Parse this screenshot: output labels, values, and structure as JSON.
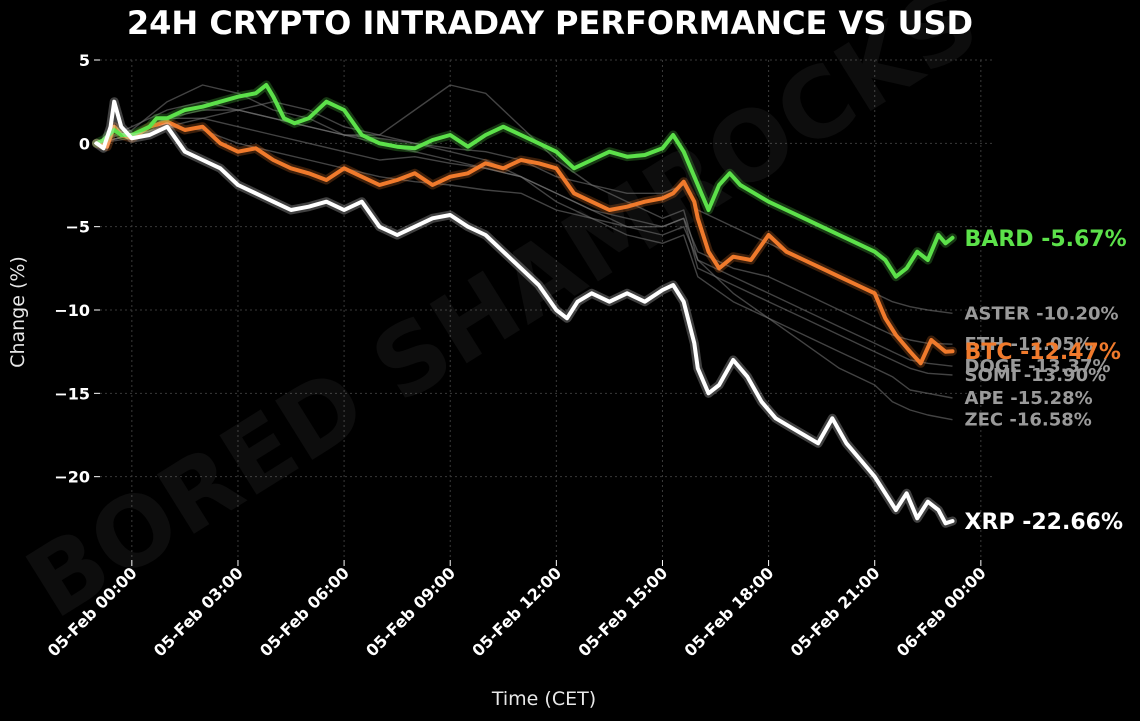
{
  "chart_data": {
    "type": "line",
    "title": "24H CRYPTO INTRADAY PERFORMANCE VS USD",
    "xlabel": "Time (CET)",
    "ylabel": "Change (%)",
    "ylim": [
      -25,
      5
    ],
    "xlim_hours": [
      -0.9,
      24.4
    ],
    "yticks": [
      5,
      0,
      -5,
      -10,
      -15,
      -20
    ],
    "yticklabels": [
      "5",
      "0",
      "−5",
      "−10",
      "−15",
      "−20"
    ],
    "xticks_hours": [
      0,
      3,
      6,
      9,
      12,
      15,
      18,
      21,
      24
    ],
    "xticklabels": [
      "05-Feb 00:00",
      "05-Feb 03:00",
      "05-Feb 06:00",
      "05-Feb 09:00",
      "05-Feb 12:00",
      "05-Feb 15:00",
      "05-Feb 18:00",
      "05-Feb 21:00",
      "06-Feb 00:00"
    ],
    "grid": true,
    "watermark": "BORED SHAMROCKS",
    "series": [
      {
        "name": "ASTER",
        "label": "ASTER -10.20%",
        "final": -10.2,
        "color": "#9a9a9a",
        "background": true,
        "x": [
          -1,
          0,
          1,
          2,
          3,
          4,
          5,
          6,
          7,
          8,
          9,
          10,
          11,
          12,
          13,
          14,
          15,
          15.6,
          16,
          17,
          18,
          19,
          20,
          21,
          21.5,
          22,
          22.5,
          23.2
        ],
        "y": [
          0,
          0.5,
          1.5,
          2.0,
          2.0,
          1.5,
          1.0,
          0.5,
          0.3,
          0,
          -0.3,
          -0.5,
          -1.0,
          -2.0,
          -2.5,
          -3.0,
          -3.0,
          -2.5,
          -4.0,
          -5.0,
          -6.0,
          -7.0,
          -8.0,
          -9.0,
          -9.5,
          -9.8,
          -10.0,
          -10.2
        ]
      },
      {
        "name": "ETH",
        "label": "ETH -12.05%",
        "final": -12.05,
        "color": "#9a9a9a",
        "background": true,
        "x": [
          -1,
          0,
          1,
          2,
          3,
          4,
          5,
          6,
          7,
          8,
          9,
          10,
          11,
          12,
          13,
          14,
          15,
          15.6,
          16,
          17,
          18,
          19,
          20,
          21,
          21.5,
          22,
          22.5,
          23.2
        ],
        "y": [
          0,
          0.3,
          1.0,
          0.8,
          0,
          -0.5,
          -1.0,
          -1.5,
          -2.0,
          -2.3,
          -2.5,
          -2.8,
          -3.0,
          -4.0,
          -4.5,
          -5.0,
          -5.0,
          -4.5,
          -6.5,
          -7.5,
          -8.0,
          -9.0,
          -10.0,
          -11.0,
          -11.5,
          -11.8,
          -12.0,
          -12.05
        ]
      },
      {
        "name": "BTC",
        "label": "BTC -12.47%",
        "final": -12.47,
        "color": "#f07a2c",
        "background": false,
        "x": [
          -1,
          -0.7,
          -0.5,
          -0.3,
          0,
          0.5,
          1,
          1.5,
          2,
          2.5,
          3,
          3.5,
          4,
          4.5,
          5,
          5.5,
          6,
          6.5,
          7,
          7.5,
          8,
          8.5,
          9,
          9.5,
          10,
          10.5,
          11,
          11.5,
          12,
          12.5,
          13,
          13.5,
          14,
          14.5,
          15,
          15.3,
          15.6,
          15.9,
          16,
          16.3,
          16.6,
          17,
          17.5,
          18,
          18.5,
          19,
          19.5,
          20,
          20.5,
          21,
          21.3,
          21.6,
          22,
          22.3,
          22.6,
          23,
          23.2
        ],
        "y": [
          0,
          -0.2,
          1.0,
          0.5,
          0.3,
          1.0,
          1.3,
          0.8,
          1.0,
          0,
          -0.5,
          -0.3,
          -1.0,
          -1.5,
          -1.8,
          -2.2,
          -1.5,
          -2.0,
          -2.5,
          -2.2,
          -1.8,
          -2.5,
          -2.0,
          -1.8,
          -1.2,
          -1.5,
          -1.0,
          -1.2,
          -1.5,
          -3.0,
          -3.5,
          -4.0,
          -3.8,
          -3.5,
          -3.3,
          -3.0,
          -2.3,
          -3.5,
          -4.5,
          -6.5,
          -7.5,
          -6.8,
          -7.0,
          -5.5,
          -6.5,
          -7.0,
          -7.5,
          -8.0,
          -8.5,
          -9.0,
          -10.5,
          -11.5,
          -12.5,
          -13.2,
          -11.8,
          -12.5,
          -12.47
        ]
      },
      {
        "name": "DOGE",
        "label": "DOGE -13.37%",
        "final": -13.37,
        "color": "#9a9a9a",
        "background": true,
        "x": [
          -1,
          0,
          1,
          2,
          3,
          4,
          5,
          6,
          7,
          8,
          9,
          10,
          11,
          12,
          13,
          14,
          15,
          15.6,
          16,
          17,
          18,
          19,
          20,
          21,
          21.5,
          22,
          22.5,
          23.2
        ],
        "y": [
          0,
          0.5,
          1.5,
          1.5,
          1.0,
          0.5,
          0,
          -0.5,
          -1.0,
          -0.8,
          -1.2,
          -1.5,
          -2.0,
          -3.0,
          -4.0,
          -5.0,
          -5.5,
          -5.0,
          -7.0,
          -8.0,
          -9.0,
          -10.0,
          -11.0,
          -12.0,
          -12.5,
          -13.0,
          -13.2,
          -13.37
        ]
      },
      {
        "name": "SOMI",
        "label": "SOMI -13.90%",
        "final": -13.9,
        "color": "#9a9a9a",
        "background": true,
        "x": [
          -1,
          0,
          1,
          2,
          3,
          4,
          5,
          6,
          7,
          8,
          9,
          10,
          11,
          12,
          13,
          14,
          15,
          15.6,
          16,
          17,
          18,
          19,
          20,
          21,
          21.5,
          22,
          22.5,
          23.2
        ],
        "y": [
          0,
          0.8,
          2.5,
          3.5,
          3.0,
          2.0,
          1.5,
          0.5,
          0,
          -0.5,
          -1.0,
          -1.5,
          -2.0,
          -3.0,
          -4.0,
          -4.5,
          -5.0,
          -4.5,
          -7.5,
          -8.5,
          -9.5,
          -10.5,
          -11.5,
          -12.5,
          -13.0,
          -13.5,
          -13.8,
          -13.9
        ]
      },
      {
        "name": "APE",
        "label": "APE -15.28%",
        "final": -15.28,
        "color": "#9a9a9a",
        "background": true,
        "x": [
          -1,
          0,
          1,
          2,
          3,
          4,
          5,
          6,
          7,
          8,
          9,
          10,
          11,
          12,
          13,
          14,
          15,
          15.6,
          16,
          17,
          18,
          19,
          20,
          21,
          21.5,
          22,
          22.5,
          23.2
        ],
        "y": [
          0,
          1.0,
          2.0,
          2.5,
          2.0,
          1.5,
          1.0,
          0.5,
          0.5,
          0,
          -0.5,
          -1.0,
          -2.0,
          -3.5,
          -4.5,
          -5.5,
          -6.0,
          -5.5,
          -8.0,
          -9.5,
          -10.5,
          -11.5,
          -12.5,
          -13.5,
          -14.0,
          -14.8,
          -15.0,
          -15.28
        ]
      },
      {
        "name": "ZEC",
        "label": "ZEC -16.58%",
        "final": -16.58,
        "color": "#9a9a9a",
        "background": true,
        "x": [
          -1,
          0,
          1,
          2,
          3,
          4,
          5,
          6,
          7,
          8,
          9,
          10,
          11,
          12,
          13,
          14,
          15,
          15.6,
          16,
          17,
          18,
          19,
          20,
          21,
          21.5,
          22,
          22.5,
          23.2
        ],
        "y": [
          0,
          0.5,
          1.0,
          1.5,
          2.0,
          2.5,
          2.0,
          1.0,
          0.5,
          2.0,
          3.5,
          3.0,
          1.0,
          -1.0,
          -2.5,
          -3.5,
          -4.5,
          -4.0,
          -7.0,
          -9.0,
          -10.5,
          -12.0,
          -13.5,
          -14.5,
          -15.5,
          -16.0,
          -16.3,
          -16.58
        ]
      },
      {
        "name": "BARD",
        "label": "BARD -5.67%",
        "final": -5.67,
        "color": "#5ce14a",
        "background": false,
        "x": [
          -1,
          -0.8,
          -0.5,
          -0.3,
          0,
          0.5,
          0.7,
          1,
          1.5,
          2,
          2.5,
          3,
          3.5,
          3.8,
          4,
          4.3,
          4.6,
          5,
          5.5,
          6,
          6.5,
          7,
          7.5,
          8,
          8.5,
          9,
          9.5,
          10,
          10.5,
          11,
          11.5,
          12,
          12.5,
          13,
          13.5,
          14,
          14.5,
          15,
          15.3,
          15.6,
          15.9,
          16,
          16.3,
          16.6,
          16.9,
          17.2,
          17.6,
          18,
          18.5,
          19,
          19.5,
          20,
          20.5,
          21,
          21.3,
          21.6,
          21.9,
          22.2,
          22.5,
          22.8,
          23,
          23.2
        ],
        "y": [
          0,
          0.2,
          0.8,
          0.5,
          0.5,
          1.0,
          1.5,
          1.5,
          2.0,
          2.2,
          2.5,
          2.8,
          3.0,
          3.5,
          2.8,
          1.5,
          1.2,
          1.5,
          2.5,
          2.0,
          0.5,
          0,
          -0.2,
          -0.3,
          0.2,
          0.5,
          -0.2,
          0.5,
          1.0,
          0.5,
          0,
          -0.5,
          -1.5,
          -1.0,
          -0.5,
          -0.8,
          -0.7,
          -0.3,
          0.5,
          -0.5,
          -2.0,
          -2.5,
          -4.0,
          -2.5,
          -1.8,
          -2.5,
          -3.0,
          -3.5,
          -4.0,
          -4.5,
          -5.0,
          -5.5,
          -6.0,
          -6.5,
          -7.0,
          -8.0,
          -7.5,
          -6.5,
          -7.0,
          -5.5,
          -6.0,
          -5.67
        ]
      },
      {
        "name": "XRP",
        "label": "XRP -22.66%",
        "final": -22.66,
        "color": "#ffffff",
        "background": false,
        "x": [
          -1,
          -0.8,
          -0.6,
          -0.5,
          -0.3,
          0,
          0.5,
          1,
          1.5,
          2,
          2.5,
          3,
          3.5,
          4,
          4.5,
          5,
          5.5,
          6,
          6.5,
          7,
          7.5,
          8,
          8.5,
          9,
          9.5,
          10,
          10.5,
          11,
          11.5,
          12,
          12.3,
          12.6,
          13,
          13.5,
          14,
          14.5,
          15,
          15.3,
          15.6,
          15.9,
          16,
          16.3,
          16.6,
          17,
          17.4,
          17.8,
          18.2,
          18.6,
          19,
          19.4,
          19.8,
          20.2,
          20.6,
          21,
          21.3,
          21.6,
          21.9,
          22.2,
          22.5,
          22.8,
          23,
          23.2
        ],
        "y": [
          0,
          -0.3,
          1.0,
          2.5,
          1.0,
          0.3,
          0.5,
          1.0,
          -0.5,
          -1.0,
          -1.5,
          -2.5,
          -3.0,
          -3.5,
          -4.0,
          -3.8,
          -3.5,
          -4.0,
          -3.5,
          -5.0,
          -5.5,
          -5.0,
          -4.5,
          -4.3,
          -5.0,
          -5.5,
          -6.5,
          -7.5,
          -8.5,
          -10.0,
          -10.5,
          -9.5,
          -9.0,
          -9.5,
          -9.0,
          -9.5,
          -8.8,
          -8.5,
          -9.5,
          -12.0,
          -13.5,
          -15.0,
          -14.5,
          -13.0,
          -14.0,
          -15.5,
          -16.5,
          -17.0,
          -17.5,
          -18.0,
          -16.5,
          -18.0,
          -19.0,
          -20.0,
          -21.0,
          -22.0,
          -21.0,
          -22.5,
          -21.5,
          -22.0,
          -22.8,
          -22.66
        ]
      }
    ]
  }
}
